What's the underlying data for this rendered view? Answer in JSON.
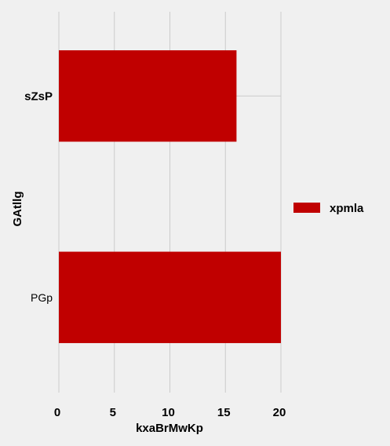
{
  "chart_data": {
    "type": "bar",
    "orientation": "horizontal",
    "categories": [
      "sZsP",
      "PGp"
    ],
    "series": [
      {
        "name": "xpmla",
        "values": [
          16,
          20
        ],
        "color": "#c00000"
      }
    ],
    "xlabel": "kxaBrMwKp",
    "ylabel": "GAtllg",
    "xlim": [
      0,
      20
    ],
    "xticks": [
      "0",
      "5",
      "10",
      "15",
      "20"
    ],
    "grid": true,
    "legend_position": "right"
  }
}
